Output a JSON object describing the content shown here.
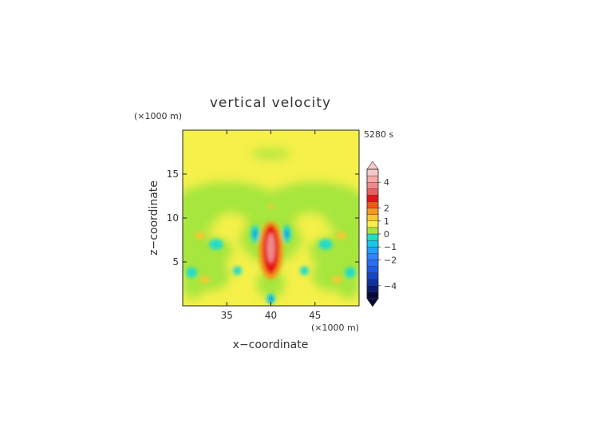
{
  "chart_data": {
    "type": "heatmap",
    "title": "vertical velocity",
    "time_label": "5280 s",
    "xlabel": "x−coordinate",
    "ylabel": "z−coordinate",
    "x_unit": "(×1000 m)",
    "y_unit": "(×1000 m)",
    "xlim": [
      30,
      50
    ],
    "ylim": [
      0,
      20
    ],
    "x_ticks": [
      35,
      40,
      45
    ],
    "y_ticks": [
      5,
      10,
      15
    ],
    "x_tick_labels": [
      "35",
      "40",
      "45"
    ],
    "y_tick_labels": [
      "5",
      "10",
      "15"
    ],
    "colorbar": {
      "levels": [
        -5,
        -4.5,
        -4,
        -3.5,
        -3,
        -2.5,
        -2,
        -1.5,
        -1,
        -0.5,
        0,
        0.5,
        1,
        1.5,
        2,
        2.5,
        3,
        3.5,
        4,
        4.5,
        5
      ],
      "colors": [
        "#050a3a",
        "#0a1a6e",
        "#1030a0",
        "#1846c8",
        "#1f5ae6",
        "#2a6cf5",
        "#2f82ff",
        "#1fa0ff",
        "#18c8e6",
        "#22dccc",
        "#a6e63c",
        "#f5f04a",
        "#f7c832",
        "#f59a1e",
        "#f05a14",
        "#e51414",
        "#e86060",
        "#ef8a8a",
        "#f5a8a8",
        "#f8c8c8"
      ],
      "tick_values": [
        4,
        2,
        1,
        0,
        -1,
        -2,
        -4
      ],
      "tick_labels": [
        "4",
        "2",
        "1",
        "0",
        "−1",
        "−2",
        "−4"
      ]
    },
    "features": [
      {
        "x": 40.0,
        "z": 6.5,
        "w": 3.4,
        "description": "updraft core"
      },
      {
        "x": 40.0,
        "z": 5.0,
        "w": 2.0
      },
      {
        "x": 38.2,
        "z": 8.2,
        "w": -1.0
      },
      {
        "x": 41.8,
        "z": 8.2,
        "w": -1.0
      },
      {
        "x": 33.8,
        "z": 7.0,
        "w": -0.8
      },
      {
        "x": 46.2,
        "z": 7.0,
        "w": -0.8
      },
      {
        "x": 40.0,
        "z": 0.8,
        "w": -1.2
      },
      {
        "x": 31.0,
        "z": 4.0,
        "w": -0.7
      },
      {
        "x": 49.0,
        "z": 4.0,
        "w": -0.7
      },
      {
        "x": 40.0,
        "z": 17.3,
        "w": 0.2
      }
    ]
  }
}
